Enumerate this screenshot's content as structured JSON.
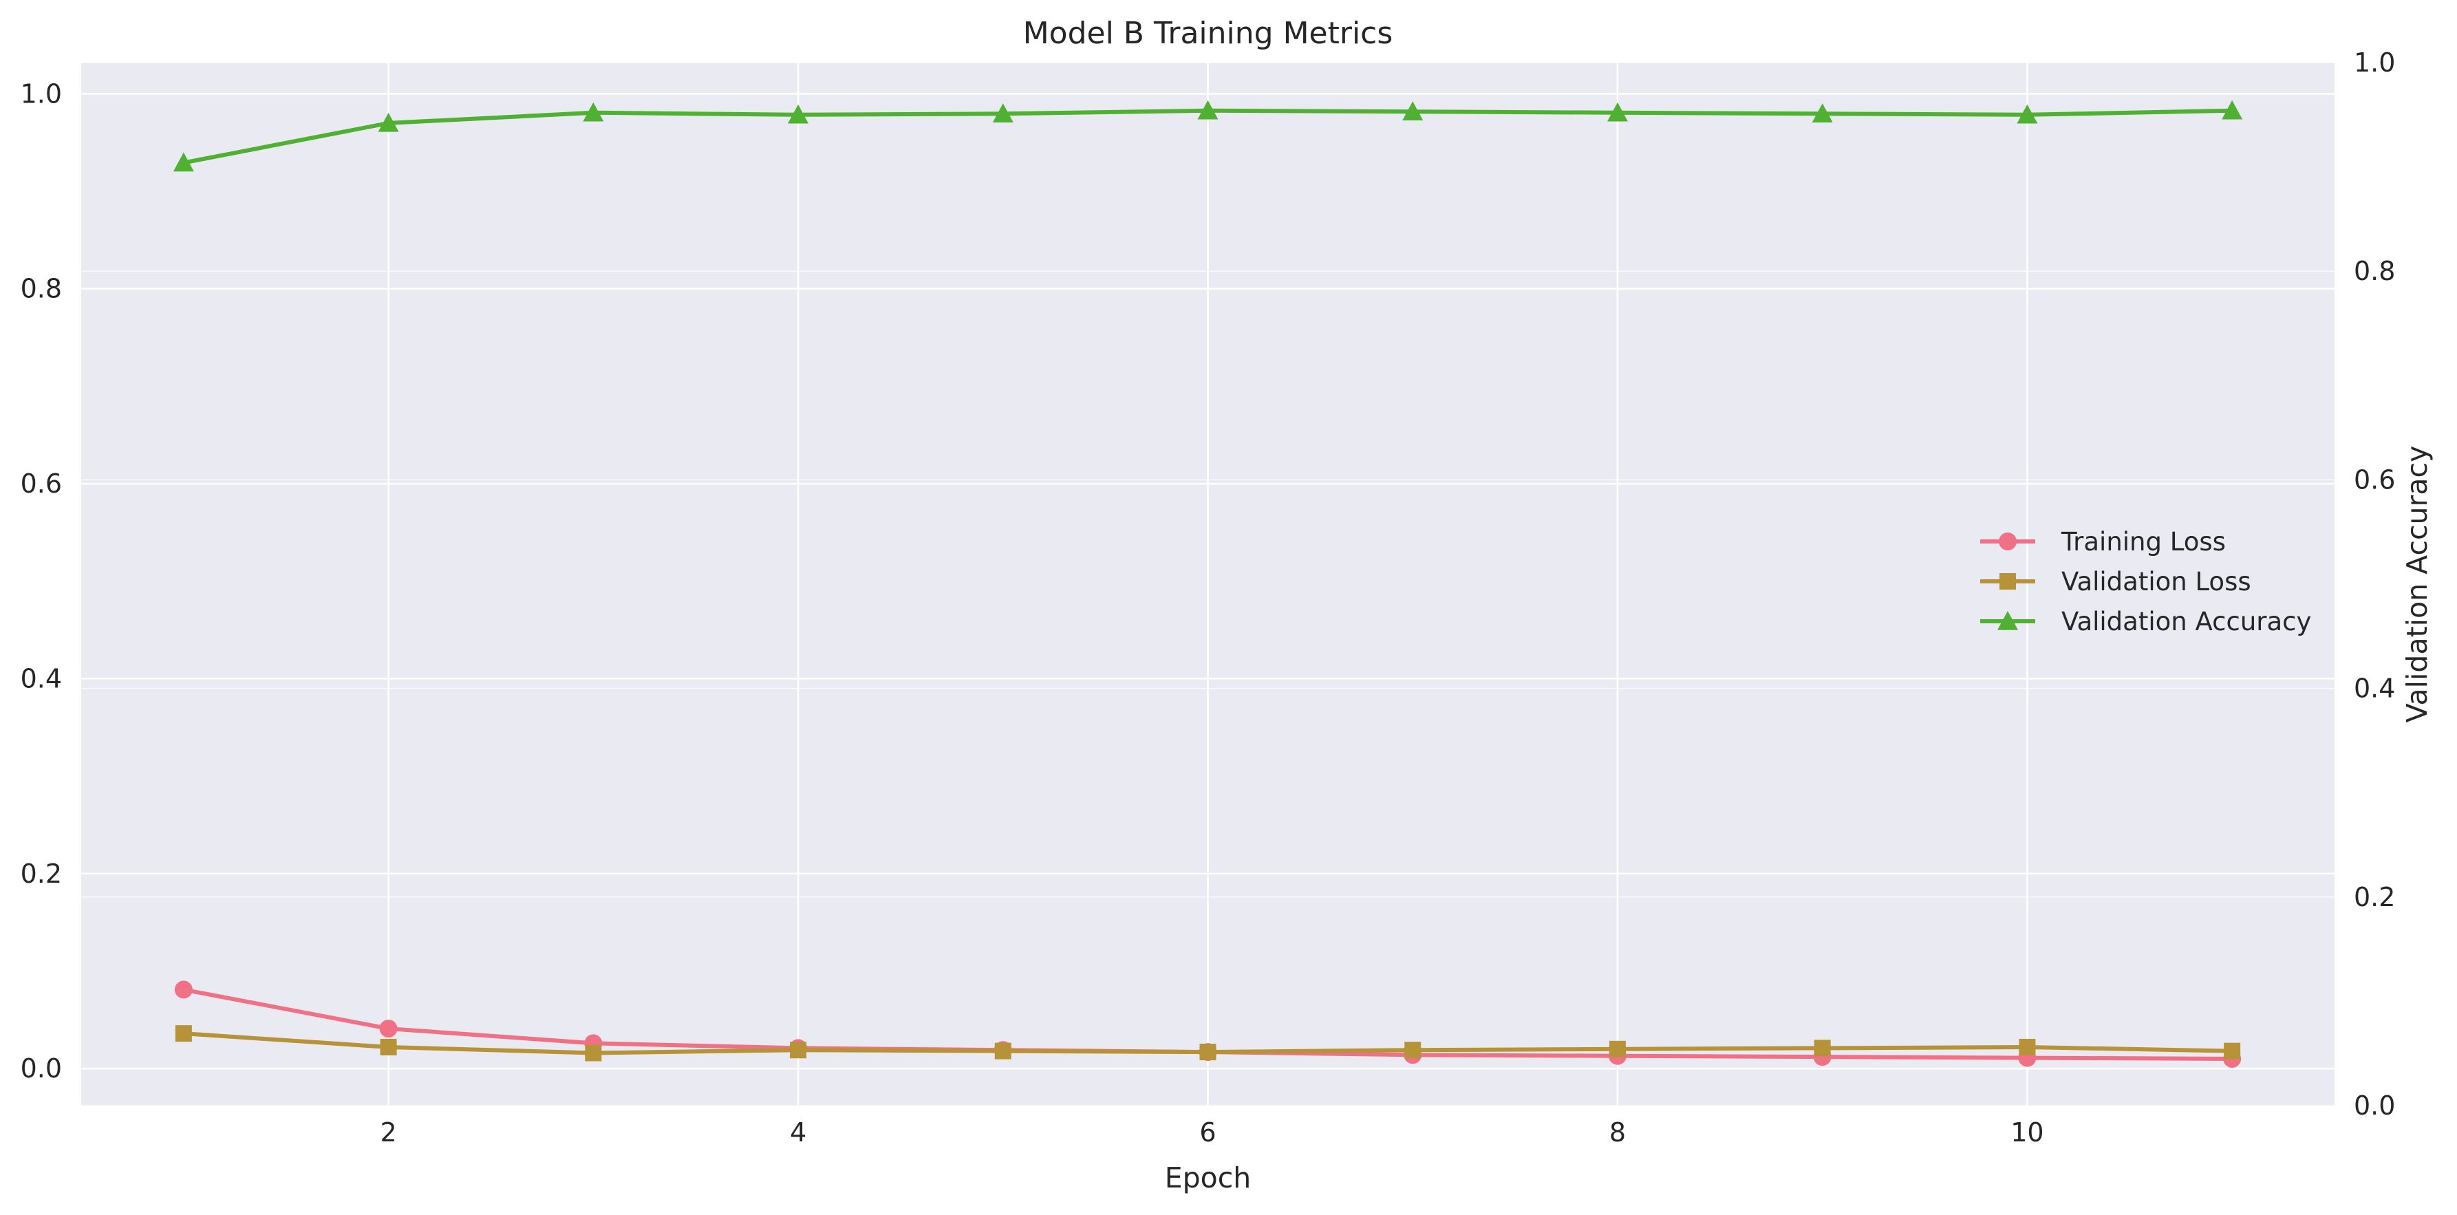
{
  "chart_data": {
    "type": "line",
    "title": "Model B Training Metrics",
    "xlabel": "Epoch",
    "ylabel": "",
    "ylabel_right": "Validation Accuracy",
    "x": [
      1,
      2,
      3,
      4,
      5,
      6,
      7,
      8,
      9,
      10,
      11
    ],
    "xlim": [
      0.5,
      11.5
    ],
    "ylim": [
      -0.038,
      1.032
    ],
    "ylim_right": [
      0.0,
      1.0
    ],
    "x_ticks": [
      2,
      4,
      6,
      8,
      10
    ],
    "y_ticks": [
      0.0,
      0.2,
      0.4,
      0.6,
      0.8,
      1.0
    ],
    "y_ticks_right": [
      0.0,
      0.2,
      0.4,
      0.6,
      0.8,
      1.0
    ],
    "grid": true,
    "legend_position": "center-right",
    "colors": {
      "background": "#eaeaf2",
      "grid": "#ffffff",
      "text": "#262626"
    },
    "series": [
      {
        "name": "Training Loss",
        "axis": "left",
        "marker": "circle",
        "color": "#f07185",
        "values": [
          0.081,
          0.041,
          0.026,
          0.021,
          0.019,
          0.017,
          0.014,
          0.013,
          0.012,
          0.011,
          0.01
        ]
      },
      {
        "name": "Validation Loss",
        "axis": "left",
        "marker": "square",
        "color": "#b69338",
        "values": [
          0.036,
          0.022,
          0.016,
          0.019,
          0.018,
          0.017,
          0.019,
          0.02,
          0.021,
          0.022,
          0.018
        ]
      },
      {
        "name": "Validation Accuracy",
        "axis": "right",
        "marker": "triangle",
        "color": "#50b032",
        "values": [
          0.904,
          0.942,
          0.952,
          0.95,
          0.951,
          0.954,
          0.953,
          0.952,
          0.951,
          0.95,
          0.954
        ]
      }
    ]
  }
}
